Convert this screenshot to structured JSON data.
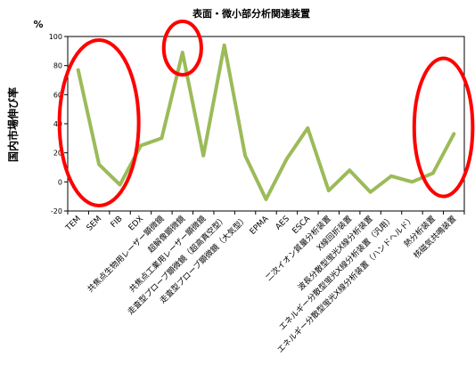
{
  "chart_data": {
    "type": "line",
    "title": "表面・微小部分析関連装置",
    "ylabel": "国内市場伸び率",
    "yunit": "%",
    "ylim": [
      -20,
      100
    ],
    "yticks": [
      -20,
      0,
      20,
      40,
      60,
      80,
      100
    ],
    "grid": false,
    "legend": "none",
    "categories": [
      "TEM",
      "SEM",
      "FIB",
      "EDX",
      "共焦点生物用レーザー顕微鏡",
      "超解像顕微鏡",
      "共焦点工業用レーザー顕微鏡",
      "走査型プローブ顕微鏡（超高真空型）",
      "走査型プローブ顕微鏡（大気型）",
      "EPMA",
      "AES",
      "ESCA",
      "二次イオン質量分析装置",
      "X線回折装置",
      "波長分散型蛍光X線分析装置",
      "エネルギー分散型蛍光X線分析装置（汎用）",
      "エネルギー分散型蛍光X線分析装置（ハンドヘルド）",
      "熱分析装置",
      "核磁気共鳴装置"
    ],
    "series": [
      {
        "values": [
          77,
          12,
          -2,
          25,
          30,
          89,
          18,
          94,
          18,
          -12,
          16,
          37,
          -6,
          8,
          -7,
          4,
          0,
          6,
          33
        ],
        "color": "#9bbb59"
      }
    ],
    "annotations": [
      {
        "shape": "ellipse",
        "color": "#ff0000",
        "covers": [
          "TEM",
          "SEM",
          "FIB"
        ]
      },
      {
        "shape": "ellipse",
        "color": "#ff0000",
        "covers": [
          "超解像顕微鏡"
        ]
      },
      {
        "shape": "ellipse",
        "color": "#ff0000",
        "covers": [
          "熱分析装置",
          "核磁気共鳴装置"
        ]
      }
    ]
  }
}
